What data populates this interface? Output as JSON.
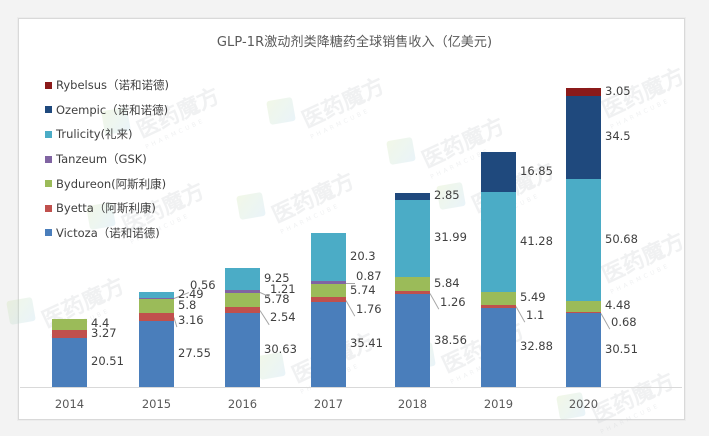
{
  "chart_data": {
    "type": "bar",
    "stacked": true,
    "title": "GLP-1R激动剂类降糖药全球销售收入（亿美元)",
    "xlabel": "",
    "ylabel": "",
    "categories": [
      "2014",
      "2015",
      "2016",
      "2017",
      "2018",
      "2019",
      "2020"
    ],
    "series": [
      {
        "name": "Victoza（诺和诺德)",
        "color": "#4a7ebb",
        "values": [
          20.51,
          27.55,
          30.63,
          35.41,
          38.56,
          32.88,
          30.51
        ]
      },
      {
        "name": "Byetta（阿斯利康)",
        "color": "#c0504d",
        "values": [
          3.27,
          3.16,
          2.54,
          1.76,
          1.26,
          1.1,
          0.68
        ]
      },
      {
        "name": "Bydureon(阿斯利康)",
        "color": "#9bbb59",
        "values": [
          4.4,
          5.8,
          5.78,
          5.74,
          5.84,
          5.49,
          4.48
        ]
      },
      {
        "name": "Tanzeum（GSK)",
        "color": "#8064a2",
        "values": [
          0,
          0.56,
          1.21,
          0.87,
          0,
          0,
          0
        ]
      },
      {
        "name": "Trulicity(礼来)",
        "color": "#4bacc6",
        "values": [
          0,
          2.49,
          9.25,
          20.3,
          31.99,
          41.28,
          50.68
        ]
      },
      {
        "name": "Ozempic（诺和诺德)",
        "color": "#1f497d",
        "values": [
          0,
          0,
          0,
          0,
          2.85,
          16.85,
          34.5
        ]
      },
      {
        "name": "Rybelsus（诺和诺德)",
        "color": "#8b1a1a",
        "values": [
          0,
          0,
          0,
          0,
          0,
          0,
          3.05
        ]
      }
    ],
    "legend_position": "left",
    "legend_order": [
      "Rybelsus（诺和诺德)",
      "Ozempic（诺和诺德)",
      "Trulicity(礼来)",
      "Tanzeum（GSK)",
      "Bydureon(阿斯利康)",
      "Byetta（阿斯利康)",
      "Victoza（诺和诺德)"
    ],
    "grid": false,
    "y_axis_visible": false,
    "data_labels": true
  },
  "watermark": {
    "text": "医药魔方",
    "subtext": "PHARMCUBE"
  }
}
